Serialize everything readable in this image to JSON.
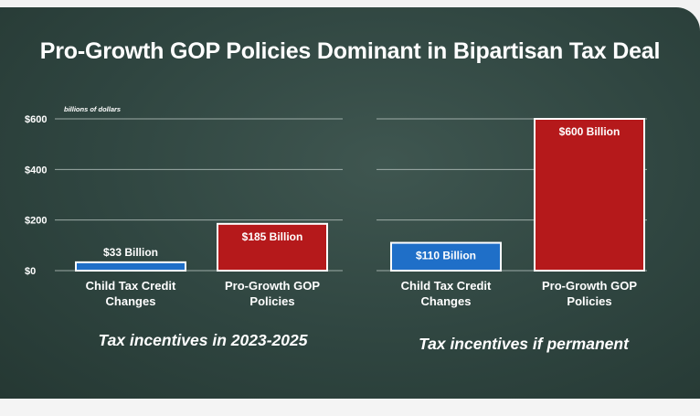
{
  "title": "Pro-Growth GOP Policies Dominant in Bipartisan Tax Deal",
  "colors": {
    "background": "#2f4540",
    "gridline": "#b8c4c0",
    "child_bar": "#1f6fc8",
    "gop_bar": "#b5191b",
    "bar_border": "#ffffff",
    "text": "#ffffff"
  },
  "chart_data": [
    {
      "type": "bar",
      "title": "Tax incentives in 2023-2025",
      "ylabel": "billions of dollars",
      "ylim": [
        0,
        600
      ],
      "yticks": [
        0,
        200,
        400,
        600
      ],
      "ytick_labels": [
        "$0",
        "$200",
        "$400",
        "$600"
      ],
      "grid": true,
      "categories": [
        "Child Tax Credit Changes",
        "Pro-Growth GOP Policies"
      ],
      "category_lines": [
        [
          "Child Tax Credit",
          "Changes"
        ],
        [
          "Pro-Growth GOP",
          "Policies"
        ]
      ],
      "values": [
        33,
        185
      ],
      "data_labels": [
        "$33 Billion",
        "$185 Billion"
      ]
    },
    {
      "type": "bar",
      "title": "Tax incentives if permanent",
      "ylim": [
        0,
        600
      ],
      "grid": true,
      "categories": [
        "Child Tax Credit Changes",
        "Pro-Growth GOP Policies"
      ],
      "category_lines": [
        [
          "Child Tax Credit",
          "Changes"
        ],
        [
          "Pro-Growth GOP",
          "Policies"
        ]
      ],
      "values": [
        110,
        600
      ],
      "data_labels": [
        "$110 Billion",
        "$600 Billion"
      ]
    }
  ]
}
